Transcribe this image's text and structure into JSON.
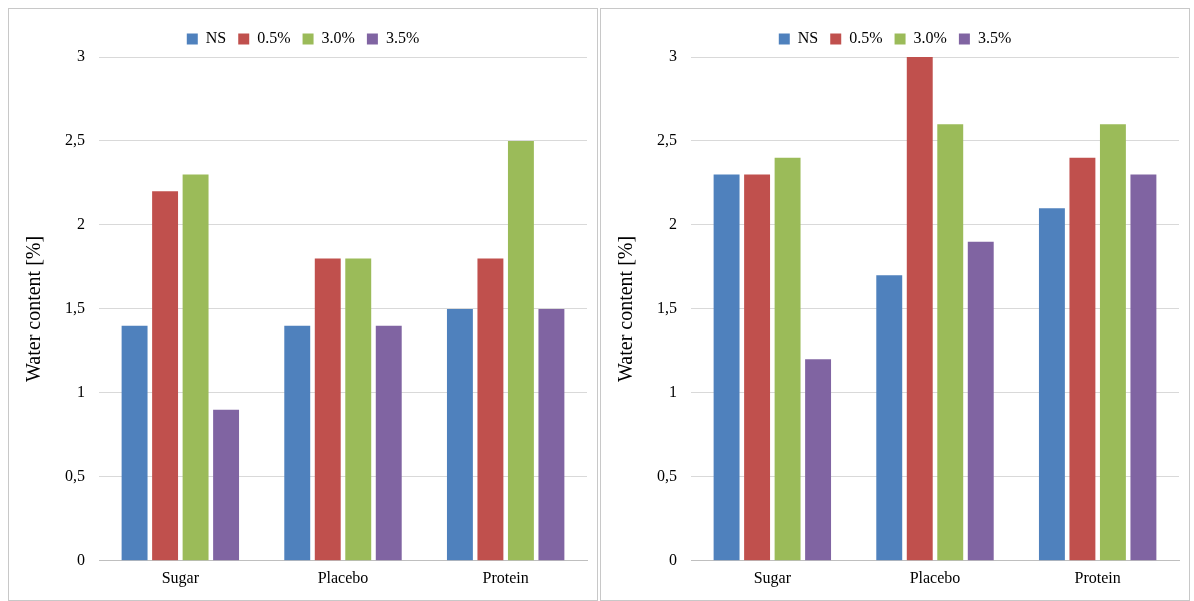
{
  "chart_data": [
    {
      "type": "bar",
      "ylabel": "Water content [%]",
      "categories": [
        "Sugar",
        "Placebo",
        "Protein"
      ],
      "series": [
        {
          "name": "NS",
          "color": "#4f81bd",
          "values": [
            1.4,
            1.4,
            1.5
          ]
        },
        {
          "name": "0.5%",
          "color": "#c0504d",
          "values": [
            2.2,
            1.8,
            1.8
          ]
        },
        {
          "name": "3.0%",
          "color": "#9bbb59",
          "values": [
            2.3,
            1.8,
            2.5
          ]
        },
        {
          "name": "3.5%",
          "color": "#8064a2",
          "values": [
            0.9,
            1.4,
            1.5
          ]
        }
      ],
      "ylim": [
        0,
        3
      ],
      "yticks": [
        0,
        {
          "value": 0.5,
          "label": "0,5"
        },
        1,
        {
          "value": 1.5,
          "label": "1,5"
        },
        2,
        {
          "value": 2.5,
          "label": "2,5"
        },
        3
      ],
      "grid": "y",
      "legend": "top"
    },
    {
      "type": "bar",
      "ylabel": "Water content [%]",
      "categories": [
        "Sugar",
        "Placebo",
        "Protein"
      ],
      "series": [
        {
          "name": "NS",
          "color": "#4f81bd",
          "values": [
            2.3,
            1.7,
            2.1
          ]
        },
        {
          "name": "0.5%",
          "color": "#c0504d",
          "values": [
            2.3,
            3.0,
            2.4
          ]
        },
        {
          "name": "3.0%",
          "color": "#9bbb59",
          "values": [
            2.4,
            2.6,
            2.6
          ]
        },
        {
          "name": "3.5%",
          "color": "#8064a2",
          "values": [
            1.2,
            1.9,
            2.3
          ]
        }
      ],
      "ylim": [
        0,
        3
      ],
      "yticks": [
        0,
        {
          "value": 0.5,
          "label": "0,5"
        },
        1,
        {
          "value": 1.5,
          "label": "1,5"
        },
        2,
        {
          "value": 2.5,
          "label": "2,5"
        },
        3
      ],
      "grid": "y",
      "legend": "top"
    }
  ]
}
